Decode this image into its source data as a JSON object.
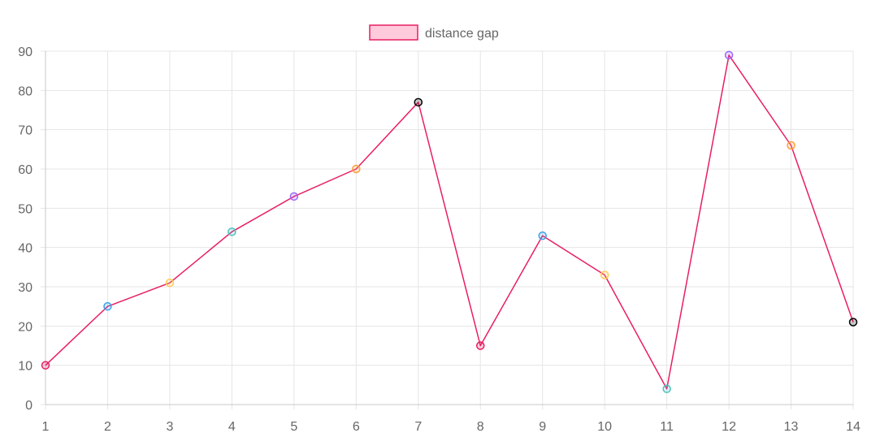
{
  "chart_data": {
    "type": "line",
    "x": [
      1,
      2,
      3,
      4,
      5,
      6,
      7,
      8,
      9,
      10,
      11,
      12,
      13,
      14
    ],
    "series": [
      {
        "name": "distance gap",
        "values": [
          10,
          25,
          31,
          44,
          53,
          60,
          77,
          15,
          43,
          33,
          4,
          89,
          66,
          21
        ],
        "line_color": "#e91e63",
        "legend_fill": "#ffcadb",
        "point_colors": [
          "#e91e63",
          "#36a2eb",
          "#ffcd56",
          "#4bc0c0",
          "#9966ff",
          "#ff9f40",
          "#000000",
          "#e91e63",
          "#36a2eb",
          "#ffcd56",
          "#4bc0c0",
          "#9966ff",
          "#ff9f40",
          "#000000"
        ]
      }
    ],
    "xlabel": "",
    "ylabel": "",
    "ylim": [
      0,
      90
    ],
    "yticks": [
      0,
      10,
      20,
      30,
      40,
      50,
      60,
      70,
      80,
      90
    ],
    "xticks": [
      "1",
      "2",
      "3",
      "4",
      "5",
      "6",
      "7",
      "8",
      "9",
      "10",
      "11",
      "12",
      "13",
      "14"
    ],
    "grid": true,
    "legend_position": "top-center",
    "grid_color": "#e5e5e5",
    "axis_color": "#c8c8c8",
    "text_color": "#666666"
  }
}
